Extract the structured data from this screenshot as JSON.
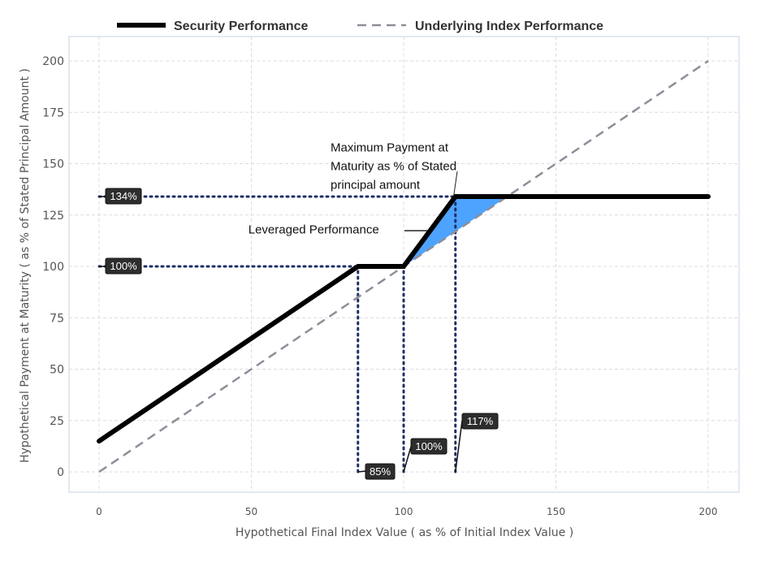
{
  "chart_data": {
    "type": "line",
    "legend": {
      "placement": "top",
      "entries": [
        {
          "name": "Security Performance",
          "style": "solid",
          "color": "#000000"
        },
        {
          "name": "Underlying Index Performance",
          "style": "dashed",
          "color": "#8e8e9a"
        }
      ]
    },
    "xlabel": "Hypothetical Final Index Value ( as % of Initial Index Value )",
    "ylabel": "Hypothetical Payment at Maturity ( as % of Stated Principal Amount )",
    "xlim": [
      -10,
      210
    ],
    "ylim": [
      -5,
      205
    ],
    "xticks": [
      0,
      50,
      100,
      150,
      200
    ],
    "yticks": [
      0,
      25,
      50,
      75,
      100,
      125,
      150,
      175,
      200
    ],
    "grid": true,
    "series": [
      {
        "name": "Security Performance",
        "color": "#000000",
        "dash": "solid",
        "x": [
          0,
          85,
          100,
          117,
          200
        ],
        "y": [
          15,
          100,
          100,
          134,
          134
        ]
      },
      {
        "name": "Underlying Index Performance",
        "color": "#8e8e9a",
        "dash": "dashed",
        "x": [
          0,
          200
        ],
        "y": [
          0,
          200
        ]
      }
    ],
    "shaded_region": {
      "color": "#4da3ff",
      "x": [
        100,
        117,
        134
      ],
      "y": [
        100,
        134,
        134
      ]
    },
    "reference_lines": [
      {
        "from": [
          0,
          134
        ],
        "to": [
          117,
          134
        ]
      },
      {
        "from": [
          0,
          100
        ],
        "to": [
          85,
          100
        ]
      },
      {
        "from": [
          85,
          0
        ],
        "to": [
          85,
          100
        ]
      },
      {
        "from": [
          100,
          0
        ],
        "to": [
          100,
          100
        ]
      },
      {
        "from": [
          117,
          0
        ],
        "to": [
          117,
          134
        ]
      }
    ],
    "tags": [
      {
        "text": "134%",
        "x": 0,
        "y": 134,
        "placement": "right"
      },
      {
        "text": "100%",
        "x": 0,
        "y": 100,
        "placement": "right"
      },
      {
        "text": "85%",
        "x": 85,
        "y": 0,
        "placement": "right"
      },
      {
        "text": "100%",
        "x": 100,
        "y": 0,
        "placement": "up-right"
      },
      {
        "text": "117%",
        "x": 117,
        "y": 0,
        "placement": "up-right-high"
      }
    ],
    "annotations": [
      {
        "lines": [
          "Maximum Payment at",
          "Maturity as % of Stated",
          "principal amount"
        ],
        "text_at": [
          76,
          156
        ],
        "arrow_to": [
          125,
          135
        ]
      },
      {
        "lines": [
          "Leveraged Performance"
        ],
        "text_at": [
          49,
          116
        ],
        "arrow_to": [
          110,
          118
        ]
      }
    ]
  }
}
